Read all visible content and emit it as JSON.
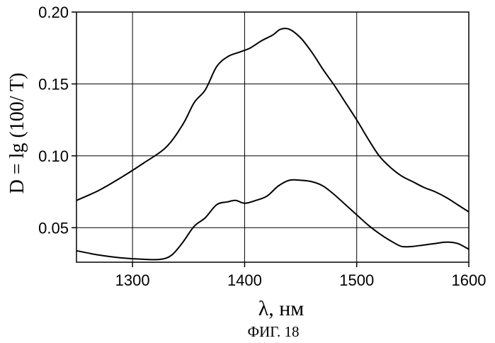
{
  "chart_data": {
    "type": "line",
    "xlabel": "λ, нм",
    "ylabel": "D = lg (100/ T)",
    "caption": "ФИГ. 18",
    "xlim": [
      1250,
      1600
    ],
    "ylim": [
      0.026,
      0.2
    ],
    "xticks": [
      1300,
      1400,
      1500,
      1600
    ],
    "yticks": [
      0.05,
      0.1,
      0.15,
      0.2
    ],
    "xtick_labels": [
      "1300",
      "1400",
      "1500",
      "1600"
    ],
    "ytick_labels": [
      "0.05",
      "0.10",
      "0.15",
      "0.20"
    ],
    "grid": true,
    "series": [
      {
        "x": [
          1250,
          1270,
          1290,
          1310,
          1330,
          1345,
          1355,
          1365,
          1375,
          1385,
          1395,
          1405,
          1415,
          1425,
          1432,
          1440,
          1450,
          1460,
          1470,
          1480,
          1490,
          1500,
          1510,
          1520,
          1530,
          1540,
          1550,
          1560,
          1570,
          1580,
          1590,
          1600
        ],
        "y": [
          0.069,
          0.076,
          0.085,
          0.095,
          0.106,
          0.122,
          0.137,
          0.146,
          0.162,
          0.169,
          0.172,
          0.175,
          0.18,
          0.184,
          0.188,
          0.188,
          0.182,
          0.172,
          0.16,
          0.149,
          0.137,
          0.125,
          0.112,
          0.1,
          0.092,
          0.086,
          0.082,
          0.078,
          0.075,
          0.071,
          0.066,
          0.061
        ]
      },
      {
        "x": [
          1250,
          1270,
          1290,
          1310,
          1325,
          1335,
          1345,
          1355,
          1365,
          1375,
          1385,
          1392,
          1400,
          1410,
          1420,
          1430,
          1440,
          1450,
          1460,
          1470,
          1480,
          1490,
          1500,
          1510,
          1520,
          1530,
          1540,
          1550,
          1560,
          1570,
          1580,
          1590,
          1600
        ],
        "y": [
          0.034,
          0.031,
          0.029,
          0.028,
          0.028,
          0.031,
          0.04,
          0.051,
          0.057,
          0.066,
          0.068,
          0.069,
          0.067,
          0.069,
          0.072,
          0.079,
          0.083,
          0.083,
          0.082,
          0.079,
          0.073,
          0.066,
          0.059,
          0.052,
          0.046,
          0.041,
          0.037,
          0.037,
          0.038,
          0.039,
          0.04,
          0.039,
          0.035
        ]
      }
    ]
  }
}
